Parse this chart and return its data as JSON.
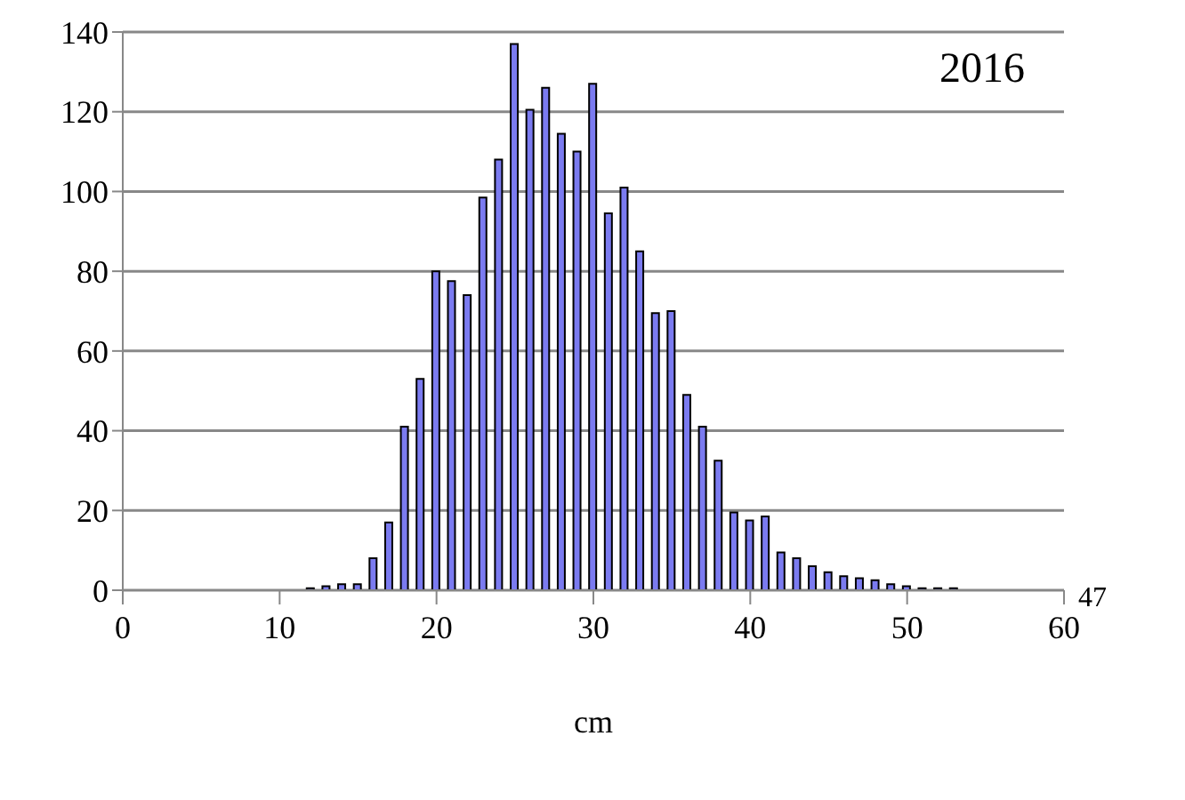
{
  "chart_data": {
    "type": "bar",
    "xlabel": "cm",
    "annotations": [
      "2016",
      "47"
    ],
    "x": [
      5,
      6,
      7,
      8,
      9,
      10,
      11,
      12,
      13,
      14,
      15,
      16,
      17,
      18,
      19,
      20,
      21,
      22,
      23,
      24,
      25,
      26,
      27,
      28,
      29,
      30,
      31,
      32,
      33,
      34,
      35,
      36,
      37,
      38,
      39,
      40,
      41,
      42,
      43,
      44,
      45,
      46,
      47,
      48,
      49,
      50,
      51,
      52,
      53,
      54,
      55,
      56,
      57,
      58,
      59
    ],
    "values": [
      0,
      0,
      0,
      0,
      0,
      0,
      0,
      0.5,
      1,
      1.5,
      1.5,
      8,
      17,
      41,
      53,
      80,
      77.5,
      74,
      98.5,
      108,
      137,
      120.5,
      126,
      114.5,
      110,
      127,
      94.5,
      101,
      85,
      69.5,
      70,
      49,
      41,
      32.5,
      19.5,
      17.5,
      18.5,
      9.5,
      8,
      6,
      4.5,
      3.5,
      3,
      2.5,
      1.5,
      1,
      0.5,
      0.5,
      0.5,
      0,
      0,
      0,
      0,
      0,
      0
    ],
    "color": "#7b7bf0",
    "xlim": [
      0,
      60
    ],
    "xticks": [
      0,
      10,
      20,
      30,
      40,
      50,
      60
    ],
    "ylim": [
      0,
      140
    ],
    "yticks": [
      0,
      20,
      40,
      60,
      80,
      100,
      120,
      140
    ],
    "grid": "y"
  }
}
